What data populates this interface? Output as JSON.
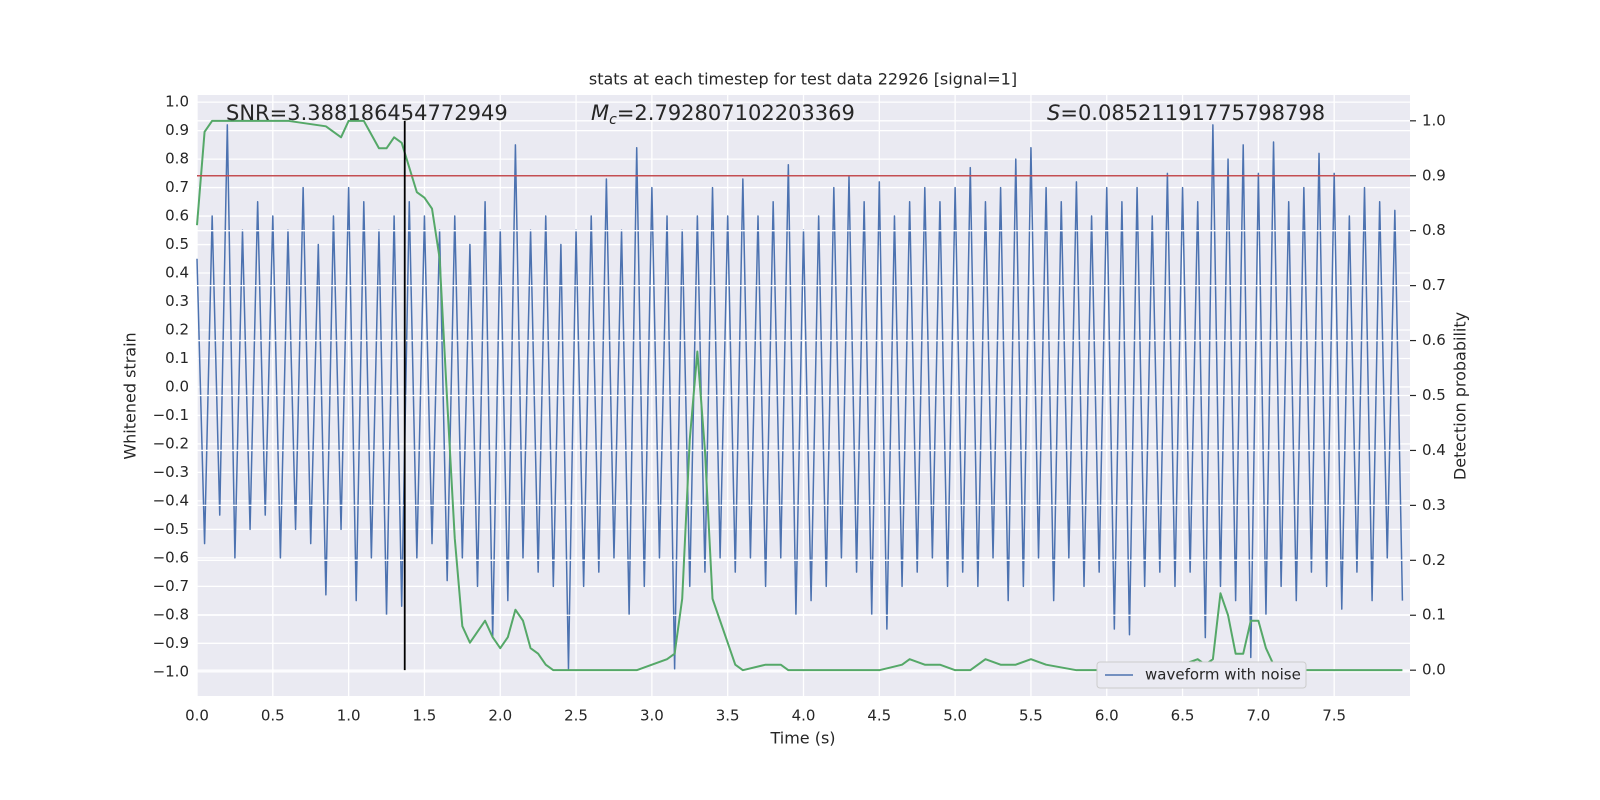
{
  "chart_data": {
    "type": "line",
    "title": "stats at each timestep for test data 22926 [signal=1]",
    "x_label": "Time (s)",
    "y_label": "Whitened strain",
    "y2_label": "Detection probability",
    "annotations": [
      {
        "parts": [
          {
            "text": "SNR=3.388186454772949",
            "style": "normal"
          }
        ]
      },
      {
        "parts": [
          {
            "text": "M",
            "style": "italic"
          },
          {
            "text": "c",
            "style": "sub"
          },
          {
            "text": "=2.792807102203369",
            "style": "normal"
          }
        ]
      },
      {
        "parts": [
          {
            "text": "S",
            "style": "italic"
          },
          {
            "text": "=0.08521191775798798",
            "style": "normal"
          }
        ]
      }
    ],
    "xlim": [
      0,
      8
    ],
    "ylim": [
      -1.085,
      1.025
    ],
    "y2lim": [
      -0.047,
      1.047
    ],
    "xticks": [
      {
        "value": 0,
        "label": "0.0"
      },
      {
        "value": 0.5,
        "label": "0.5"
      },
      {
        "value": 1,
        "label": "1.0"
      },
      {
        "value": 1.5,
        "label": "1.5"
      },
      {
        "value": 2,
        "label": "2.0"
      },
      {
        "value": 2.5,
        "label": "2.5"
      },
      {
        "value": 3,
        "label": "3.0"
      },
      {
        "value": 3.5,
        "label": "3.5"
      },
      {
        "value": 4,
        "label": "4.0"
      },
      {
        "value": 4.5,
        "label": "4.5"
      },
      {
        "value": 5,
        "label": "5.0"
      },
      {
        "value": 5.5,
        "label": "5.5"
      },
      {
        "value": 6,
        "label": "6.0"
      },
      {
        "value": 6.5,
        "label": "6.5"
      },
      {
        "value": 7,
        "label": "7.0"
      },
      {
        "value": 7.5,
        "label": "7.5"
      }
    ],
    "yticks": [
      {
        "value": -1,
        "label": "−1.0"
      },
      {
        "value": -0.9,
        "label": "−0.9"
      },
      {
        "value": -0.8,
        "label": "−0.8"
      },
      {
        "value": -0.7,
        "label": "−0.7"
      },
      {
        "value": -0.6,
        "label": "−0.6"
      },
      {
        "value": -0.5,
        "label": "−0.5"
      },
      {
        "value": -0.4,
        "label": "−0.4"
      },
      {
        "value": -0.3,
        "label": "−0.3"
      },
      {
        "value": -0.2,
        "label": "−0.2"
      },
      {
        "value": -0.1,
        "label": "−0.1"
      },
      {
        "value": 0,
        "label": "0.0"
      },
      {
        "value": 0.1,
        "label": "0.1"
      },
      {
        "value": 0.2,
        "label": "0.2"
      },
      {
        "value": 0.3,
        "label": "0.3"
      },
      {
        "value": 0.4,
        "label": "0.4"
      },
      {
        "value": 0.5,
        "label": "0.5"
      },
      {
        "value": 0.6,
        "label": "0.6"
      },
      {
        "value": 0.7,
        "label": "0.7"
      },
      {
        "value": 0.8,
        "label": "0.8"
      },
      {
        "value": 0.9,
        "label": "0.9"
      },
      {
        "value": 1,
        "label": "1.0"
      }
    ],
    "y2ticks": [
      {
        "value": 0,
        "label": "0.0"
      },
      {
        "value": 0.1,
        "label": "0.1"
      },
      {
        "value": 0.2,
        "label": "0.2"
      },
      {
        "value": 0.3,
        "label": "0.3"
      },
      {
        "value": 0.4,
        "label": "0.4"
      },
      {
        "value": 0.5,
        "label": "0.5"
      },
      {
        "value": 0.6,
        "label": "0.6"
      },
      {
        "value": 0.7,
        "label": "0.7"
      },
      {
        "value": 0.8,
        "label": "0.8"
      },
      {
        "value": 0.9,
        "label": "0.9"
      },
      {
        "value": 1,
        "label": "1.0"
      }
    ],
    "grid": true,
    "legend": "lower right",
    "hline": {
      "axis": "y2",
      "value": 0.9,
      "color": "#c44e52"
    },
    "vline": {
      "x": 1.37,
      "axis": "y2",
      "ymin": 0,
      "ymax": 1,
      "color": "#000000"
    },
    "series": [
      {
        "name": "waveform with noise",
        "color": "#4c72b0",
        "x": [
          0,
          0.05,
          0.1,
          0.15,
          0.2,
          0.25,
          0.3,
          0.35,
          0.4,
          0.45,
          0.5,
          0.55,
          0.6,
          0.65,
          0.7,
          0.75,
          0.8,
          0.85,
          0.9,
          0.95,
          1,
          1.05,
          1.1,
          1.15,
          1.2,
          1.25,
          1.3,
          1.35,
          1.4,
          1.45,
          1.5,
          1.55,
          1.6,
          1.65,
          1.7,
          1.75,
          1.8,
          1.85,
          1.9,
          1.95,
          2,
          2.05,
          2.1,
          2.15,
          2.2,
          2.25,
          2.3,
          2.35,
          2.4,
          2.45,
          2.5,
          2.55,
          2.6,
          2.65,
          2.7,
          2.75,
          2.8,
          2.85,
          2.9,
          2.95,
          3,
          3.05,
          3.1,
          3.15,
          3.2,
          3.25,
          3.3,
          3.35,
          3.4,
          3.45,
          3.5,
          3.55,
          3.6,
          3.65,
          3.7,
          3.75,
          3.8,
          3.85,
          3.9,
          3.95,
          4,
          4.05,
          4.1,
          4.15,
          4.2,
          4.25,
          4.3,
          4.35,
          4.4,
          4.45,
          4.5,
          4.55,
          4.6,
          4.65,
          4.7,
          4.75,
          4.8,
          4.85,
          4.9,
          4.95,
          5,
          5.05,
          5.1,
          5.15,
          5.2,
          5.25,
          5.3,
          5.35,
          5.4,
          5.45,
          5.5,
          5.55,
          5.6,
          5.65,
          5.7,
          5.75,
          5.8,
          5.85,
          5.9,
          5.95,
          6,
          6.05,
          6.1,
          6.15,
          6.2,
          6.25,
          6.3,
          6.35,
          6.4,
          6.45,
          6.5,
          6.55,
          6.6,
          6.65,
          6.7,
          6.75,
          6.8,
          6.85,
          6.9,
          6.95,
          7,
          7.05,
          7.1,
          7.15,
          7.2,
          7.25,
          7.3,
          7.35,
          7.4,
          7.45,
          7.5,
          7.55,
          7.6,
          7.65,
          7.7,
          7.75,
          7.8,
          7.85,
          7.9,
          7.95
        ],
        "values": [
          0.45,
          -0.55,
          0.6,
          -0.45,
          0.92,
          -0.6,
          0.55,
          -0.5,
          0.65,
          -0.45,
          0.6,
          -0.6,
          0.55,
          -0.5,
          0.7,
          -0.55,
          0.5,
          -0.73,
          0.6,
          -0.5,
          0.7,
          -0.75,
          0.65,
          -0.6,
          0.55,
          -0.8,
          0.6,
          -0.77,
          0.65,
          -0.6,
          0.6,
          -0.55,
          0.55,
          -0.68,
          0.6,
          -0.6,
          0.5,
          -0.7,
          0.65,
          -0.88,
          0.55,
          -0.75,
          0.85,
          -0.6,
          0.55,
          -0.65,
          0.6,
          -0.7,
          0.5,
          -0.99,
          0.55,
          -0.7,
          0.6,
          -0.65,
          0.73,
          -0.6,
          0.55,
          -0.8,
          0.84,
          -0.7,
          0.7,
          -0.6,
          0.6,
          -0.99,
          0.55,
          -0.7,
          0.6,
          -0.65,
          0.7,
          -0.6,
          0.6,
          -0.65,
          0.73,
          -0.6,
          0.6,
          -0.7,
          0.65,
          -0.6,
          0.78,
          -0.8,
          0.55,
          -0.75,
          0.6,
          -0.7,
          0.7,
          -0.6,
          0.74,
          -0.65,
          0.65,
          -0.8,
          0.72,
          -0.85,
          0.6,
          -0.7,
          0.65,
          -0.65,
          0.7,
          -0.6,
          0.65,
          -0.7,
          0.7,
          -0.65,
          0.77,
          -0.7,
          0.65,
          -0.6,
          0.7,
          -0.75,
          0.8,
          -0.7,
          0.84,
          -0.6,
          0.7,
          -0.75,
          0.65,
          -0.6,
          0.72,
          -0.7,
          0.6,
          -0.65,
          0.7,
          -0.85,
          0.65,
          -0.87,
          0.7,
          -0.7,
          0.6,
          -0.65,
          0.75,
          -0.7,
          0.7,
          -0.65,
          0.65,
          -0.88,
          0.92,
          -0.7,
          0.8,
          -0.75,
          0.85,
          -0.95,
          0.75,
          -0.8,
          0.86,
          -0.7,
          0.65,
          -0.75,
          0.7,
          -0.65,
          0.82,
          -0.7,
          0.75,
          -0.78,
          0.6,
          -0.65,
          0.7,
          -0.75,
          0.65,
          -0.6,
          0.62,
          -0.75
        ]
      },
      {
        "color": "#55a868",
        "axis": "y2",
        "x": [
          0,
          0.05,
          0.1,
          0.3,
          0.6,
          0.85,
          0.95,
          1,
          1.1,
          1.2,
          1.25,
          1.3,
          1.35,
          1.45,
          1.5,
          1.55,
          1.6,
          1.65,
          1.7,
          1.75,
          1.8,
          1.85,
          1.9,
          1.95,
          2,
          2.05,
          2.1,
          2.15,
          2.2,
          2.25,
          2.3,
          2.35,
          2.45,
          2.9,
          3,
          3.1,
          3.15,
          3.2,
          3.25,
          3.3,
          3.35,
          3.4,
          3.45,
          3.5,
          3.55,
          3.6,
          3.75,
          3.85,
          3.9,
          4,
          4.5,
          4.65,
          4.7,
          4.8,
          4.9,
          5,
          5.1,
          5.2,
          5.3,
          5.4,
          5.5,
          5.6,
          5.8,
          6,
          6.3,
          6.5,
          6.6,
          6.65,
          6.7,
          6.75,
          6.8,
          6.85,
          6.9,
          6.95,
          7,
          7.05,
          7.1,
          7.15,
          7.2,
          7.5,
          7.95
        ],
        "values": [
          0.81,
          0.98,
          1,
          1,
          1,
          0.99,
          0.97,
          1,
          1,
          0.95,
          0.95,
          0.97,
          0.96,
          0.87,
          0.86,
          0.84,
          0.75,
          0.49,
          0.24,
          0.08,
          0.05,
          0.07,
          0.09,
          0.06,
          0.04,
          0.06,
          0.11,
          0.09,
          0.04,
          0.03,
          0.01,
          0,
          0,
          0,
          0.01,
          0.02,
          0.03,
          0.13,
          0.42,
          0.58,
          0.4,
          0.13,
          0.09,
          0.05,
          0.01,
          0,
          0.01,
          0.01,
          0,
          0,
          0,
          0.01,
          0.02,
          0.01,
          0.01,
          0,
          0,
          0.02,
          0.01,
          0.01,
          0.02,
          0.01,
          0,
          0,
          0,
          0.01,
          0.02,
          0.01,
          0.02,
          0.14,
          0.1,
          0.03,
          0.03,
          0.09,
          0.09,
          0.04,
          0.01,
          0,
          0,
          0,
          0
        ]
      }
    ]
  }
}
